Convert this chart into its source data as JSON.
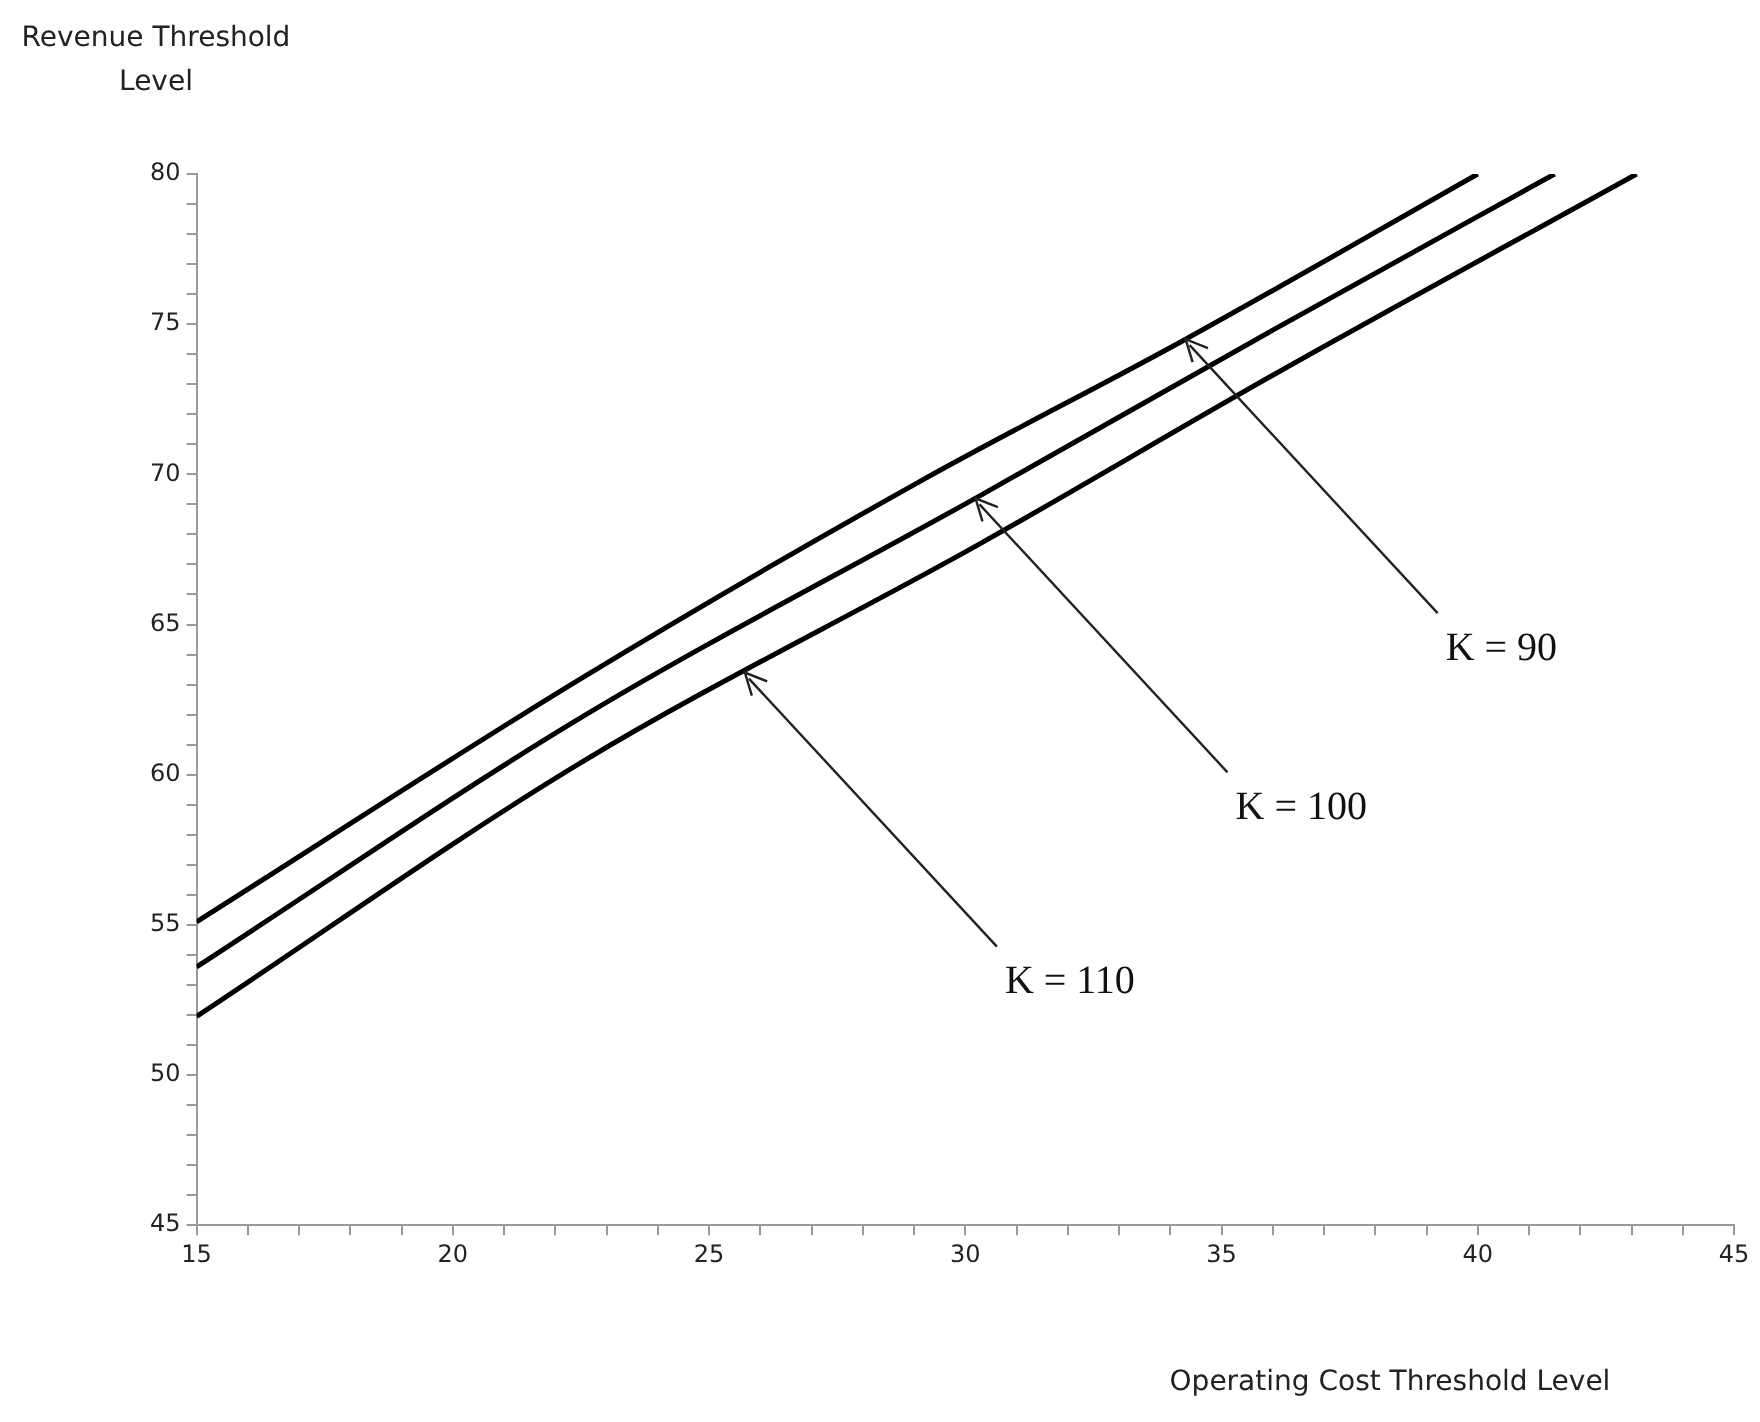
{
  "chart_data": {
    "type": "line",
    "xlabel": "Operating Cost Threshold Level",
    "ylabel": "Revenue Threshold Level",
    "xlim": [
      15,
      45
    ],
    "ylim": [
      45,
      80
    ],
    "xticks": [
      15,
      {
        "value": 16,
        "label": null
      },
      {
        "value": 17,
        "label": null
      },
      {
        "value": 18,
        "label": null
      },
      {
        "value": 19,
        "label": null
      },
      20,
      {
        "value": 21,
        "label": null
      },
      {
        "value": 22,
        "label": null
      },
      {
        "value": 23,
        "label": null
      },
      {
        "value": 24,
        "label": null
      },
      25,
      {
        "value": 26,
        "label": null
      },
      {
        "value": 27,
        "label": null
      },
      {
        "value": 28,
        "label": null
      },
      {
        "value": 29,
        "label": null
      },
      30,
      {
        "value": 31,
        "label": null
      },
      {
        "value": 32,
        "label": null
      },
      {
        "value": 33,
        "label": null
      },
      {
        "value": 34,
        "label": null
      },
      35,
      {
        "value": 36,
        "label": null
      },
      {
        "value": 37,
        "label": null
      },
      {
        "value": 38,
        "label": null
      },
      {
        "value": 39,
        "label": null
      },
      40,
      {
        "value": 41,
        "label": null
      },
      {
        "value": 42,
        "label": null
      },
      {
        "value": 43,
        "label": null
      },
      {
        "value": 44,
        "label": null
      },
      45
    ],
    "yticks": [
      45,
      {
        "value": 46,
        "label": null
      },
      {
        "value": 47,
        "label": null
      },
      {
        "value": 48,
        "label": null
      },
      {
        "value": 49,
        "label": null
      },
      50,
      {
        "value": 51,
        "label": null
      },
      {
        "value": 52,
        "label": null
      },
      {
        "value": 53,
        "label": null
      },
      {
        "value": 54,
        "label": null
      },
      55,
      {
        "value": 56,
        "label": null
      },
      {
        "value": 57,
        "label": null
      },
      {
        "value": 58,
        "label": null
      },
      {
        "value": 59,
        "label": null
      },
      60,
      {
        "value": 61,
        "label": null
      },
      {
        "value": 62,
        "label": null
      },
      {
        "value": 63,
        "label": null
      },
      {
        "value": 64,
        "label": null
      },
      65,
      {
        "value": 66,
        "label": null
      },
      {
        "value": 67,
        "label": null
      },
      {
        "value": 68,
        "label": null
      },
      {
        "value": 69,
        "label": null
      },
      70,
      {
        "value": 71,
        "label": null
      },
      {
        "value": 72,
        "label": null
      },
      {
        "value": 73,
        "label": null
      },
      {
        "value": 74,
        "label": null
      },
      75,
      {
        "value": 76,
        "label": null
      },
      {
        "value": 77,
        "label": null
      },
      {
        "value": 78,
        "label": null
      },
      {
        "value": 79,
        "label": null
      },
      80
    ],
    "grid": false,
    "legend": false,
    "marker": "none",
    "line_style": "solid",
    "series": [
      {
        "color": "#000000",
        "x": [
          15,
          22.5,
          29.1,
          34.3,
          40.0
        ],
        "values": [
          55.1,
          63.2,
          69.75,
          74.5,
          80
        ]
      },
      {
        "color": "#000000",
        "x": [
          15,
          22.5,
          30.3,
          36,
          41.5
        ],
        "values": [
          53.6,
          61.9,
          69.3,
          74.8,
          80
        ]
      },
      {
        "color": "#000000",
        "x": [
          15,
          22.5,
          30.3,
          36,
          43.1
        ],
        "values": [
          51.95,
          60.4,
          67.7,
          73.3,
          80
        ]
      }
    ],
    "annotations": [
      {
        "text": "K = 90",
        "x": 34.3,
        "y": 74.5
      },
      {
        "text": "K = 100",
        "x": 30.2,
        "y": 69.2
      },
      {
        "text": "K = 110",
        "x": 25.7,
        "y": 63.4
      }
    ]
  }
}
